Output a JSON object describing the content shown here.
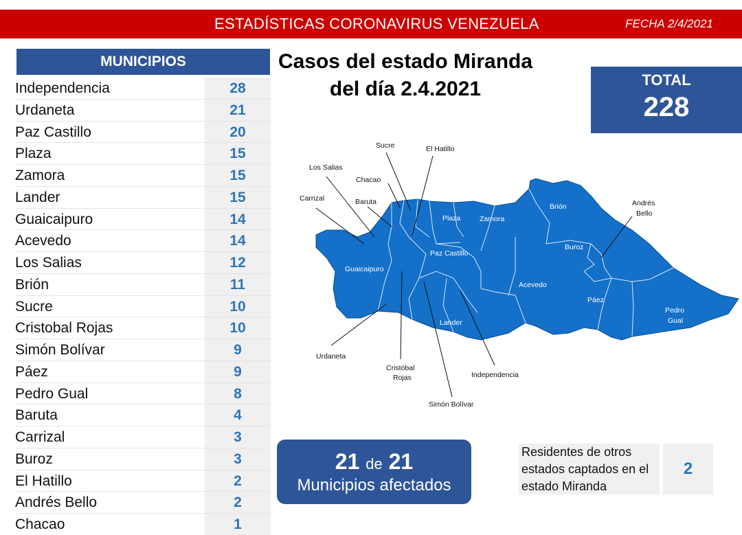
{
  "header": {
    "title": "ESTADÍSTICAS CORONAVIRUS VENEZUELA",
    "date": "FECHA 2/4/2021"
  },
  "municipios": {
    "heading": "MUNICIPIOS",
    "rows": [
      {
        "name": "Independencia",
        "value": "28"
      },
      {
        "name": "Urdaneta",
        "value": "21"
      },
      {
        "name": "Paz Castillo",
        "value": "20"
      },
      {
        "name": "Plaza",
        "value": "15"
      },
      {
        "name": "Zamora",
        "value": "15"
      },
      {
        "name": "Lander",
        "value": "15"
      },
      {
        "name": "Guaicaipuro",
        "value": "14"
      },
      {
        "name": "Acevedo",
        "value": "14"
      },
      {
        "name": "Los Salias",
        "value": "12"
      },
      {
        "name": "Brión",
        "value": "11"
      },
      {
        "name": "Sucre",
        "value": "10"
      },
      {
        "name": "Cristobal Rojas",
        "value": "10"
      },
      {
        "name": "Simón Bolívar",
        "value": "9"
      },
      {
        "name": "Páez",
        "value": "9"
      },
      {
        "name": "Pedro Gual",
        "value": "8"
      },
      {
        "name": "Baruta",
        "value": "4"
      },
      {
        "name": "Carrizal",
        "value": "3"
      },
      {
        "name": "Buroz",
        "value": "3"
      },
      {
        "name": "El Hatillo",
        "value": "2"
      },
      {
        "name": "Andrés Bello",
        "value": "2"
      },
      {
        "name": "Chacao",
        "value": "1"
      }
    ]
  },
  "title": {
    "line1": "Casos del estado Miranda",
    "line2": "del día 2.4.2021"
  },
  "total": {
    "label": "TOTAL",
    "value": "228"
  },
  "map": {
    "fill_color": "#1470c8",
    "labels": {
      "sucre": "Sucre",
      "el_hatillo": "El Hatillo",
      "los_salias": "Los Salias",
      "chacao": "Chacao",
      "carrizal": "Carrizal",
      "baruta": "Baruta",
      "plaza": "Plaza",
      "zamora": "Zamora",
      "brion": "Brión",
      "andres_bello_1": "Andrés",
      "andres_bello_2": "Bello",
      "buroz": "Buroz",
      "paz_castillo": "Paz Castillo",
      "guaicaipuro": "Guaicaipuro",
      "acevedo": "Acevedo",
      "paez": "Páez",
      "pedro_gual_1": "Pedro",
      "pedro_gual_2": "Gual",
      "lander": "Lander",
      "urdaneta": "Urdaneta",
      "cristobal_rojas_1": "Cristóbal",
      "cristobal_rojas_2": "Rojas",
      "independencia": "Independencia",
      "simon_bolivar": "Simón Bolívar"
    }
  },
  "affected": {
    "count": "21",
    "connector": "de",
    "total": "21",
    "label": "Municipios afectados"
  },
  "residents": {
    "line1": "Residentes de otros",
    "line2": "estados captados en el",
    "line3": "estado Miranda",
    "value": "2"
  },
  "colors": {
    "header_red": "#cc0000",
    "navy": "#2e5597",
    "value_blue": "#2e75b6"
  }
}
